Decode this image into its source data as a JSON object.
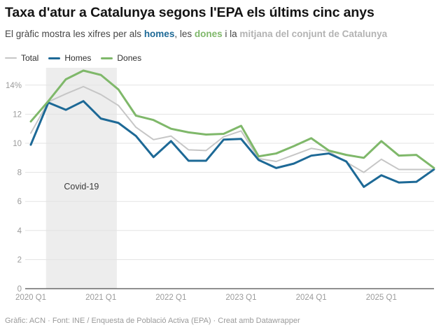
{
  "header": {
    "title": "Taxa d'atur a Catalunya segons l'EPA els últims cinc anys",
    "subtitle": {
      "prefix": "El gràfic mostra les xifres per als ",
      "homes": "homes",
      "sep1": ", les ",
      "dones": "dones",
      "sep2": " i la ",
      "mitjana": "mitjana del conjunt de Catalunya"
    }
  },
  "colors": {
    "total": "#c6c6c6",
    "homes": "#1d6996",
    "dones": "#7fb86a",
    "muted_text": "#b3b3b3",
    "band": "#ededed",
    "axis_text": "#9b9b9b",
    "axis_line": "#222222",
    "gridline": "#e3e3e3",
    "covid_label": "#3a3a3a"
  },
  "legend": {
    "items": [
      {
        "label": "Total",
        "color": "#c6c6c6"
      },
      {
        "label": "Homes",
        "color": "#1d6996"
      },
      {
        "label": "Dones",
        "color": "#7fb86a"
      }
    ]
  },
  "chart_data": {
    "type": "line",
    "title": "Taxa d'atur a Catalunya segons l'EPA els últims cinc anys",
    "unit": "%",
    "ylim": [
      0,
      15.2
    ],
    "grid": true,
    "legend_position": "top-left",
    "categories": [
      "2020 Q1",
      "2020 Q2",
      "2020 Q3",
      "2020 Q4",
      "2021 Q1",
      "2021 Q2",
      "2021 Q3",
      "2021 Q4",
      "2022 Q1",
      "2022 Q2",
      "2022 Q3",
      "2022 Q4",
      "2023 Q1",
      "2023 Q2",
      "2023 Q3",
      "2023 Q4",
      "2024 Q1",
      "2024 Q2",
      "2024 Q3",
      "2024 Q4",
      "2025 Q1",
      "2025 Q2",
      "2025 Q3",
      "2025 Q4"
    ],
    "series": [
      {
        "name": "Total",
        "color": "#c6c6c6",
        "width": 2,
        "values": [
          10.7,
          12.85,
          13.4,
          13.9,
          13.35,
          12.6,
          11.1,
          10.25,
          10.5,
          9.55,
          9.5,
          10.45,
          10.85,
          8.95,
          8.75,
          9.2,
          9.65,
          9.45,
          8.7,
          8.0,
          8.9,
          8.2,
          8.2,
          8.2
        ]
      },
      {
        "name": "Homes",
        "color": "#1d6996",
        "width": 3,
        "values": [
          9.9,
          12.8,
          12.3,
          12.9,
          11.7,
          11.4,
          10.5,
          9.05,
          10.15,
          8.8,
          8.8,
          10.25,
          10.3,
          8.85,
          8.3,
          8.6,
          9.15,
          9.3,
          8.75,
          7.0,
          7.8,
          7.3,
          7.35,
          8.2
        ]
      },
      {
        "name": "Dones",
        "color": "#7fb86a",
        "width": 3,
        "values": [
          11.5,
          12.9,
          14.4,
          15.0,
          14.7,
          13.7,
          11.9,
          11.6,
          11.0,
          10.75,
          10.6,
          10.65,
          11.2,
          9.1,
          9.3,
          9.8,
          10.35,
          9.5,
          9.2,
          9.0,
          10.15,
          9.15,
          9.2,
          8.3
        ]
      }
    ],
    "yticks": [
      {
        "v": 0,
        "label": "0"
      },
      {
        "v": 2,
        "label": "2"
      },
      {
        "v": 4,
        "label": "4"
      },
      {
        "v": 6,
        "label": "6"
      },
      {
        "v": 8,
        "label": "8"
      },
      {
        "v": 10,
        "label": "10"
      },
      {
        "v": 12,
        "label": "12"
      },
      {
        "v": 14,
        "label": "14%"
      }
    ],
    "xticks": [
      {
        "i": 0,
        "label": "2020 Q1"
      },
      {
        "i": 4,
        "label": "2021 Q1"
      },
      {
        "i": 8,
        "label": "2022 Q1"
      },
      {
        "i": 12,
        "label": "2023 Q1"
      },
      {
        "i": 16,
        "label": "2024 Q1"
      },
      {
        "i": 20,
        "label": "2025 Q1"
      }
    ],
    "highlight_band": {
      "from_index": 0.87,
      "to_index": 4.91,
      "label": "Covid-19"
    }
  },
  "footer": {
    "text": "Gràfic: ACN · Font: INE / Enquesta de Població Activa (EPA) · Creat amb Datawrapper"
  }
}
